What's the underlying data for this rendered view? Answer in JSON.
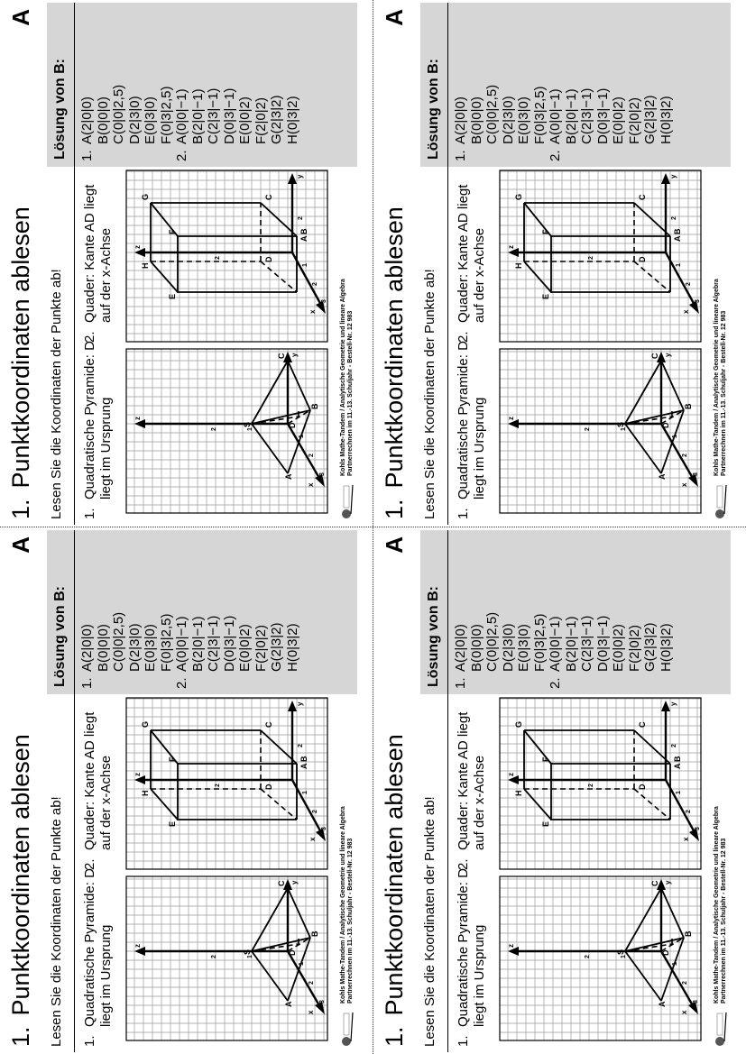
{
  "card": {
    "title_number": "1.",
    "title": "Punktkoordinaten ablesen",
    "letter": "A",
    "instruction": "Lesen Sie die Koordinaten der Punkte ab!",
    "task1_number": "1.",
    "task1_text": "Quadratische Pyramide: D liegt im Ursprung",
    "task2_number": "2.",
    "task2_text": "Quader: Kante AD liegt auf der x-Achse",
    "solution_header": "Lösung von B:",
    "solution1_number": "1.",
    "solution1": [
      "A(2|0|0)",
      "B(0|0|0)",
      "C(0|0|2,5)",
      "D(2|3|0)",
      "E(0|3|0)",
      "F(0|3|2,5)"
    ],
    "solution2_number": "2.",
    "solution2": [
      "A(0|0|−1)",
      "B(2|0|−1)",
      "C(2|3|−1)",
      "D(0|3|−1)",
      "E(0|0|2)",
      "F(2|0|2)",
      "G(2|3|2)",
      "H(0|3|2)"
    ],
    "footer_line1": "Kohls Mathe-Tandem / Analytische Geometrie und lineare Algebra",
    "footer_line2": "Partnerrechnen im 11.-13. Schuljahr  -  Bestell-Nr. 12 983",
    "fig1_labels": {
      "S": "S",
      "A": "A",
      "B": "B",
      "C": "C",
      "D": "D",
      "x": "x",
      "y": "y",
      "z": "z",
      "t1": "1",
      "t2": "2",
      "t3": "3",
      "tz1": "1",
      "tz2": "2"
    },
    "fig2_labels": {
      "A": "A",
      "B": "B",
      "C": "C",
      "D": "D",
      "E": "E",
      "F": "F",
      "G": "G",
      "H": "H",
      "x": "x",
      "y": "y",
      "z": "z",
      "t1": "1",
      "t2": "2",
      "t3": "3",
      "tz2": "2",
      "ty2": "2"
    }
  },
  "colors": {
    "panel": "#d6d6d6",
    "ink": "#000000",
    "grid": "#9a9a9a"
  }
}
